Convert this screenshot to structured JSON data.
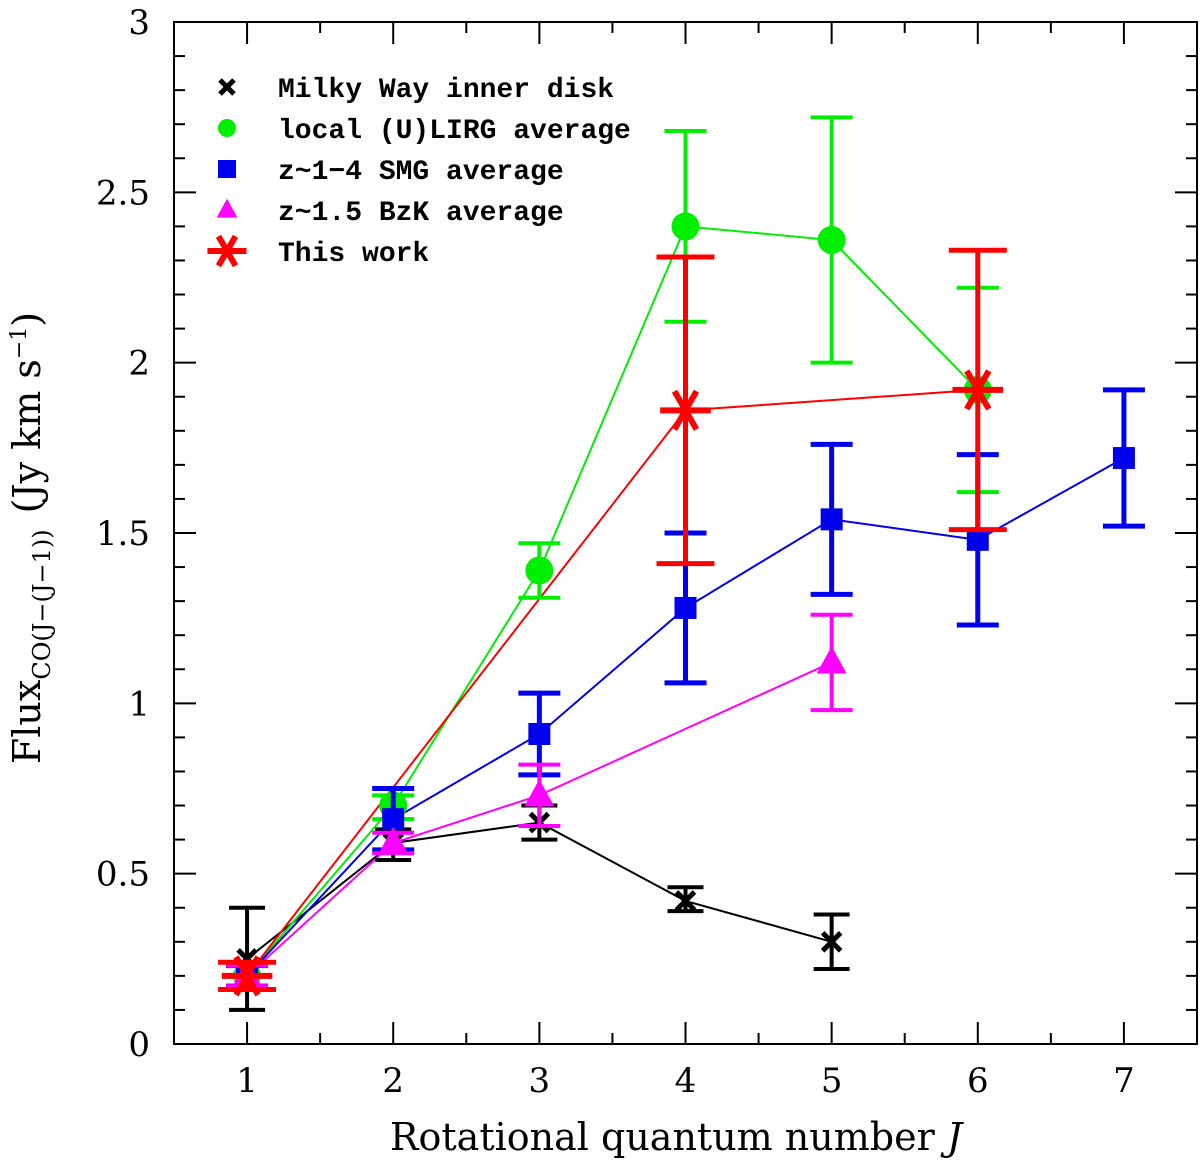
{
  "chart_data": {
    "type": "scatter",
    "xlabel": "Rotational quantum number J",
    "ylabel": "Flux",
    "ylabel_sub": "CO(J−(J−1))",
    "ylabel_units": "(Jy km s",
    "ylabel_units_sup": "−1",
    "ylabel_units_close": ")",
    "xlim": [
      0.5,
      7.5
    ],
    "ylim": [
      0,
      3
    ],
    "x_ticks": [
      1,
      2,
      3,
      4,
      5,
      6,
      7
    ],
    "x_tick_labels": [
      "1",
      "2",
      "3",
      "4",
      "5",
      "6",
      "7"
    ],
    "y_ticks": [
      0,
      0.5,
      1,
      1.5,
      2,
      2.5,
      3
    ],
    "y_tick_labels": [
      "0",
      "0.5",
      "1",
      "1.5",
      "2",
      "2.5",
      "3"
    ],
    "legend_position": "top-left",
    "series": [
      {
        "name": "Milky Way inner disk",
        "color": "#000000",
        "marker": "x",
        "x": [
          1,
          2,
          3,
          4,
          5
        ],
        "y": [
          0.25,
          0.59,
          0.65,
          0.42,
          0.3
        ],
        "err_low": [
          0.15,
          0.05,
          0.05,
          0.03,
          0.08
        ],
        "err_high": [
          0.15,
          0.04,
          0.05,
          0.04,
          0.08
        ]
      },
      {
        "name": "local (U)LIRG average",
        "color": "#00ee00",
        "marker": "circle",
        "x": [
          1,
          2,
          3,
          4,
          5,
          6
        ],
        "y": [
          0.2,
          0.7,
          1.39,
          2.4,
          2.36,
          1.92
        ],
        "err_low": [
          0.03,
          0.04,
          0.08,
          0.28,
          0.36,
          0.3
        ],
        "err_high": [
          0.03,
          0.03,
          0.08,
          0.28,
          0.36,
          0.3
        ]
      },
      {
        "name": "z~1−4 SMG average",
        "color": "#0000ee",
        "marker": "square",
        "x": [
          1,
          2,
          3,
          4,
          5,
          6,
          7
        ],
        "y": [
          0.2,
          0.66,
          0.91,
          1.28,
          1.54,
          1.48,
          1.72
        ],
        "err_low": [
          0.03,
          0.09,
          0.12,
          0.22,
          0.22,
          0.25,
          0.2
        ],
        "err_high": [
          0.03,
          0.09,
          0.12,
          0.22,
          0.22,
          0.25,
          0.2
        ]
      },
      {
        "name": "z~1.5 BzK average",
        "color": "#ff00ff",
        "marker": "triangle",
        "x": [
          1,
          2,
          3,
          5
        ],
        "y": [
          0.2,
          0.59,
          0.73,
          1.12
        ],
        "err_low": [
          0.03,
          0.03,
          0.09,
          0.14
        ],
        "err_high": [
          0.03,
          0.03,
          0.09,
          0.14
        ]
      },
      {
        "name": "This work",
        "color": "#ff0000",
        "marker": "asterisk",
        "x": [
          1,
          4,
          6
        ],
        "y": [
          0.2,
          1.86,
          1.92
        ],
        "err_low": [
          0.04,
          0.45,
          0.41
        ],
        "err_high": [
          0.04,
          0.45,
          0.41
        ]
      }
    ]
  }
}
